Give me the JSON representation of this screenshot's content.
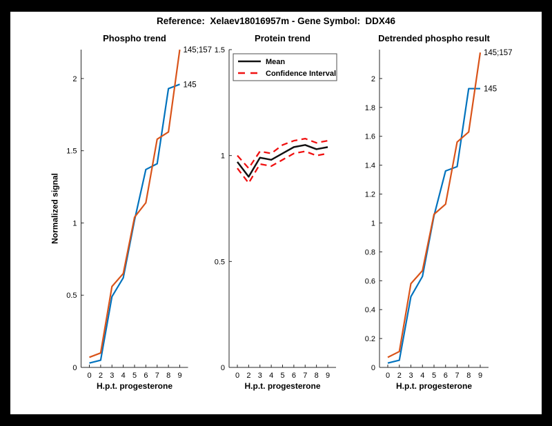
{
  "figure": {
    "title": "Reference:  Xelaev18016957m - Gene Symbol:  DDX46",
    "background": "#000000",
    "canvas": "#ffffff"
  },
  "colors": {
    "blue": "#0072BD",
    "orange": "#D95319",
    "black": "#111111",
    "red": "#F01010",
    "axis": "#262626",
    "legend_border": "#4d4d4d"
  },
  "chart_data": [
    {
      "type": "line",
      "title": "Phospho trend",
      "xlabel": "H.p.t. progesterone",
      "ylabel": "Normalized signal",
      "x_ticklabels": [
        "0",
        "2",
        "3",
        "4",
        "5",
        "6",
        "7",
        "8",
        "9"
      ],
      "ylim": [
        0,
        2.2
      ],
      "yticks": [
        0,
        0.5,
        1,
        1.5,
        2
      ],
      "ytick_labels": [
        "0",
        "0.5",
        "1",
        "1.5",
        "2"
      ],
      "grid": false,
      "series": [
        {
          "name": "145",
          "color": "blue",
          "width": 2.2,
          "dashed": false,
          "values": [
            0.03,
            0.05,
            0.49,
            0.62,
            1.02,
            1.37,
            1.41,
            1.93,
            1.96
          ],
          "end_label": "145"
        },
        {
          "name": "145;157",
          "color": "orange",
          "width": 2.2,
          "dashed": false,
          "values": [
            0.07,
            0.1,
            0.56,
            0.65,
            1.04,
            1.14,
            1.58,
            1.63,
            2.2
          ],
          "end_label": "145;157"
        }
      ]
    },
    {
      "type": "line",
      "title": "Protein trend",
      "xlabel": "H.p.t. progesterone",
      "ylabel": "",
      "x_ticklabels": [
        "0",
        "2",
        "3",
        "4",
        "5",
        "6",
        "7",
        "8",
        "9"
      ],
      "ylim": [
        0,
        1.5
      ],
      "yticks": [
        0,
        0.5,
        1,
        1.5
      ],
      "ytick_labels": [
        "0",
        "0.5",
        "1",
        "1.5"
      ],
      "grid": false,
      "legend": {
        "position": "top",
        "items": [
          {
            "label": "Mean",
            "color": "black",
            "dashed": false
          },
          {
            "label": "Confidence Interval",
            "color": "red",
            "dashed": true
          }
        ]
      },
      "series": [
        {
          "name": "Mean",
          "color": "black",
          "width": 2.5,
          "dashed": false,
          "values": [
            0.97,
            0.9,
            0.99,
            0.98,
            1.01,
            1.04,
            1.05,
            1.03,
            1.04
          ]
        },
        {
          "name": "Confidence Interval upper",
          "color": "red",
          "width": 2.3,
          "dashed": true,
          "values": [
            1.0,
            0.94,
            1.02,
            1.01,
            1.05,
            1.07,
            1.08,
            1.06,
            1.07
          ]
        },
        {
          "name": "Confidence Interval lower",
          "color": "red",
          "width": 2.3,
          "dashed": true,
          "values": [
            0.94,
            0.87,
            0.96,
            0.95,
            0.98,
            1.01,
            1.02,
            1.0,
            1.01
          ]
        }
      ]
    },
    {
      "type": "line",
      "title": "Detrended phospho result",
      "xlabel": "H.p.t. progesterone",
      "ylabel": "",
      "x_ticklabels": [
        "0",
        "2",
        "3",
        "4",
        "5",
        "6",
        "7",
        "8",
        "9"
      ],
      "ylim": [
        0,
        2.2
      ],
      "yticks": [
        0,
        0.2,
        0.4,
        0.6,
        0.8,
        1,
        1.2,
        1.4,
        1.6,
        1.8,
        2
      ],
      "ytick_labels": [
        "0",
        "0.2",
        "0.4",
        "0.6",
        "0.8",
        "1",
        "1.2",
        "1.4",
        "1.6",
        "1.8",
        "2"
      ],
      "grid": false,
      "series": [
        {
          "name": "145",
          "color": "blue",
          "width": 2.2,
          "dashed": false,
          "values": [
            0.03,
            0.05,
            0.49,
            0.63,
            1.05,
            1.36,
            1.39,
            1.93,
            1.93
          ],
          "end_label": "145"
        },
        {
          "name": "145;157",
          "color": "orange",
          "width": 2.2,
          "dashed": false,
          "values": [
            0.07,
            0.11,
            0.58,
            0.67,
            1.06,
            1.13,
            1.56,
            1.63,
            2.18
          ],
          "end_label": "145;157"
        }
      ]
    }
  ]
}
